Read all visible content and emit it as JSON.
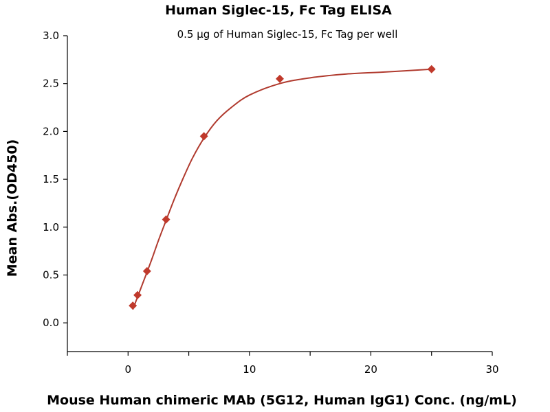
{
  "chart_data": {
    "type": "scatter",
    "title": "Human Siglec-15, Fc Tag ELISA",
    "subtitle": "0.5 μg of Human Siglec-15, Fc Tag per well",
    "xlabel": "Mouse Human chimeric MAb (5G12, Human IgG1) Conc. (ng/mL)",
    "ylabel": "Mean Abs.(OD450)",
    "xlim": [
      -5,
      30
    ],
    "ylim": [
      -0.3,
      3.0
    ],
    "x_ticks": [
      0,
      10,
      20,
      30
    ],
    "x_minor_ticks": [
      -5,
      5,
      15,
      25
    ],
    "y_ticks": [
      0.0,
      0.5,
      1.0,
      1.5,
      2.0,
      2.5,
      3.0
    ],
    "y_tick_labels": [
      "0.0",
      "0.5",
      "1.0",
      "1.5",
      "2.0",
      "2.5",
      "3.0"
    ],
    "grid": false,
    "legend": "none",
    "colors": {
      "marker": "#c0392b",
      "curve": "#b03a2e"
    },
    "series": [
      {
        "marker": "diamond",
        "x": [
          0.39,
          0.78,
          1.56,
          3.13,
          6.25,
          12.5,
          25
        ],
        "y": [
          0.18,
          0.29,
          0.54,
          1.08,
          1.95,
          2.55,
          2.65
        ]
      }
    ],
    "fit_curve": {
      "x": [
        0.39,
        0.78,
        1.2,
        1.56,
        2.0,
        2.5,
        3.13,
        3.8,
        4.5,
        5.3,
        6.25,
        7.3,
        8.5,
        10,
        12.5,
        15,
        18,
        21,
        25
      ],
      "y": [
        0.14,
        0.27,
        0.41,
        0.53,
        0.68,
        0.86,
        1.07,
        1.29,
        1.5,
        1.72,
        1.93,
        2.11,
        2.25,
        2.38,
        2.5,
        2.56,
        2.6,
        2.62,
        2.65
      ]
    }
  }
}
